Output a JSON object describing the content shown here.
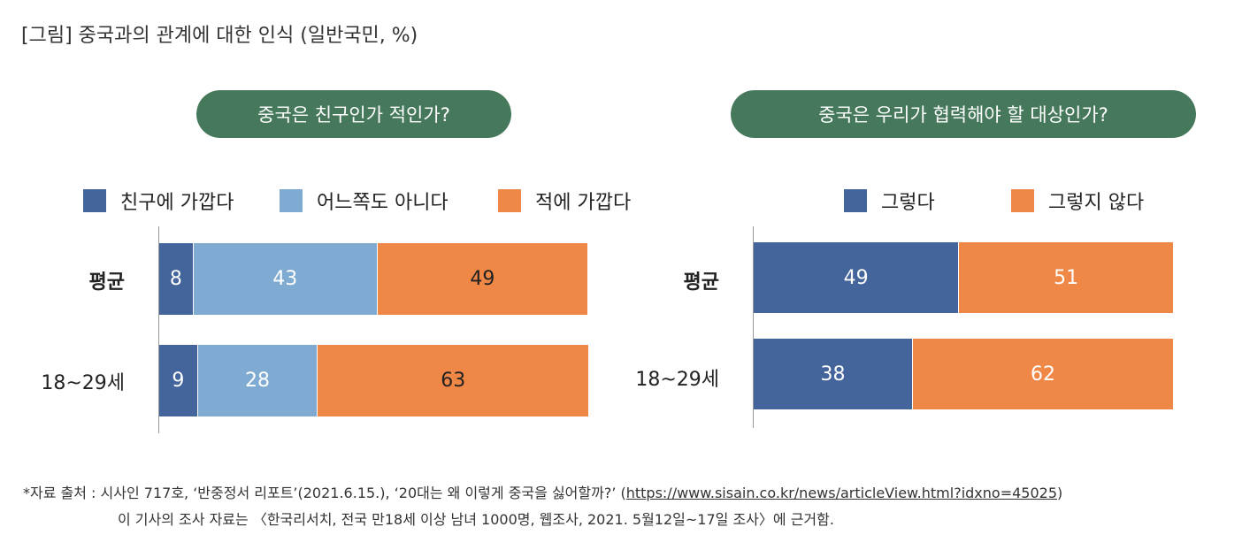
{
  "title": "[그림] 중국과의 관계에 대한 인식 (일반국민, %)",
  "chart_data": [
    {
      "type": "bar",
      "orientation": "horizontal",
      "stacked": true,
      "title": "중국은 친구인가 적인가?",
      "categories": [
        "평균",
        "18~29세"
      ],
      "series": [
        {
          "name": "친구에 가깝다",
          "color": "#44649c",
          "text_color": "#ffffff",
          "values": [
            8,
            9
          ]
        },
        {
          "name": "어느쪽도 아니다",
          "color": "#7fabd2",
          "text_color": "#ffffff",
          "values": [
            43,
            28
          ]
        },
        {
          "name": "적에 가깝다",
          "color": "#ef8747",
          "text_color": "#222222",
          "values": [
            49,
            63
          ]
        }
      ],
      "xlim": [
        0,
        100
      ]
    },
    {
      "type": "bar",
      "orientation": "horizontal",
      "stacked": true,
      "title": "중국은 우리가 협력해야 할 대상인가?",
      "categories": [
        "평균",
        "18~29세"
      ],
      "series": [
        {
          "name": "그렇다",
          "color": "#44649c",
          "text_color": "#ffffff",
          "values": [
            49,
            38
          ]
        },
        {
          "name": "그렇지 않다",
          "color": "#ef8747",
          "text_color": "#ffffff",
          "values": [
            51,
            62
          ]
        }
      ],
      "xlim": [
        0,
        100
      ]
    }
  ],
  "footnote": {
    "prefix": "*자료 출처 : 시사인 717호, ‘반중정서 리포트’(2021.6.15.), ‘20대는 왜 이렇게 중국을 싫어할까?’ (",
    "link": "https://www.sisain.co.kr/news/articleView.html?idxno=45025",
    "suffix": ")",
    "line2": "이 기사의 조사 자료는 〈한국리서치, 전국 만18세 이상 남녀 1000명, 웹조사, 2021. 5월12일~17일 조사〉에 근거함."
  }
}
